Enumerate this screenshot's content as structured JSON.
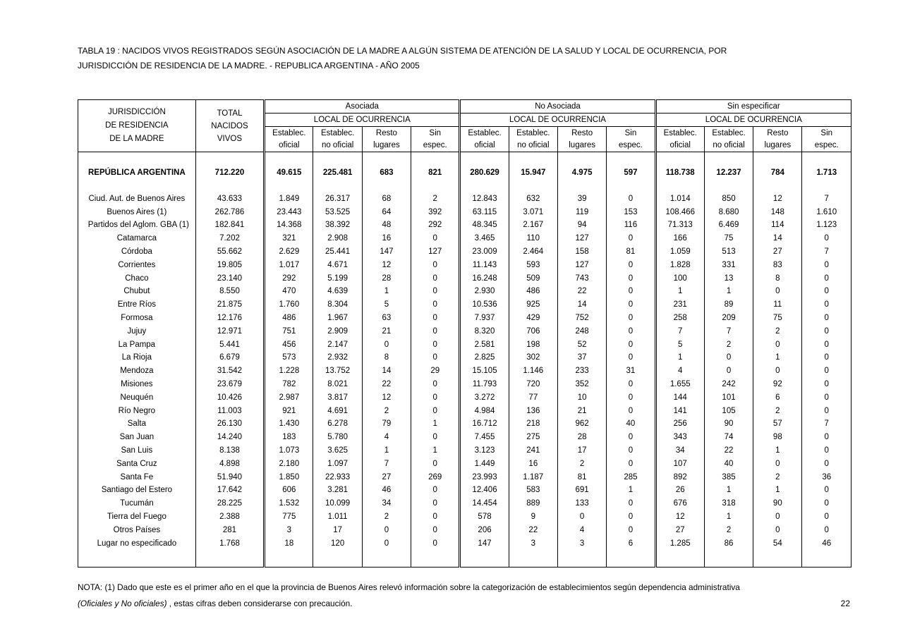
{
  "page": {
    "title_line1": "TABLA 19  : NACIDOS VIVOS REGISTRADOS SEGÚN ASOCIACIÓN DE LA MADRE A ALGÚN SISTEMA DE ATENCIÓN DE LA SALUD Y LOCAL DE OCURRENCIA, POR",
    "title_line2": "JURISDICCIÓN DE RESIDENCIA  DE LA MADRE.  - REPUBLICA ARGENTINA -  AÑO 2005",
    "note_line1": "NOTA: (1) Dado que este es el primer año en el que la provincia de Buenos Aires relevó información sobre la categorización de establecimientos según dependencia administrativa",
    "note_italic": "(Oficiales y No oficiales)",
    "note_line2_rest": " , estas cifras deben considerarse con precaución.",
    "page_number": "22"
  },
  "table": {
    "header": {
      "jurisdiction_lines": [
        "JURISDICCIÓN",
        "DE RESIDENCIA",
        "DE LA MADRE"
      ],
      "total_lines": [
        "TOTAL",
        "NACIDOS",
        "VIVOS"
      ],
      "groups": [
        {
          "label": "Asociada",
          "sublabel": "LOCAL DE OCURRENCIA"
        },
        {
          "label": "No Asociada",
          "sublabel": "LOCAL DE OCURRENCIA"
        },
        {
          "label": "Sin especificar",
          "sublabel": "LOCAL DE OCURRENCIA"
        }
      ],
      "subcolumns": [
        [
          "Establec.",
          "oficial"
        ],
        [
          "Establec.",
          "no oficial"
        ],
        [
          "Resto",
          "lugares"
        ],
        [
          "Sin",
          "espec."
        ]
      ]
    },
    "total_row": {
      "name": "REPÚBLICA ARGENTINA",
      "values": [
        "712.220",
        "49.615",
        "225.481",
        "683",
        "821",
        "280.629",
        "15.947",
        "4.975",
        "597",
        "118.738",
        "12.237",
        "784",
        "1.713"
      ]
    },
    "rows": [
      {
        "name": "Ciud. Aut. de  Buenos Aires",
        "indent": false,
        "values": [
          "43.633",
          "1.849",
          "26.317",
          "68",
          "2",
          "12.843",
          "632",
          "39",
          "0",
          "1.014",
          "850",
          "12",
          "7"
        ]
      },
      {
        "name": "Buenos Aires (1)",
        "indent": false,
        "values": [
          "262.786",
          "23.443",
          "53.525",
          "64",
          "392",
          "63.115",
          "3.071",
          "119",
          "153",
          "108.466",
          "8.680",
          "148",
          "1.610"
        ]
      },
      {
        "name": "Partidos del Aglom. GBA (1)",
        "indent": true,
        "values": [
          "182.841",
          "14.368",
          "38.392",
          "48",
          "292",
          "48.345",
          "2.167",
          "94",
          "116",
          "71.313",
          "6.469",
          "114",
          "1.123"
        ]
      },
      {
        "name": "Catamarca",
        "indent": false,
        "values": [
          "7.202",
          "321",
          "2.908",
          "16",
          "0",
          "3.465",
          "110",
          "127",
          "0",
          "166",
          "75",
          "14",
          "0"
        ]
      },
      {
        "name": "Córdoba",
        "indent": false,
        "values": [
          "55.662",
          "2.629",
          "25.441",
          "147",
          "127",
          "23.009",
          "2.464",
          "158",
          "81",
          "1.059",
          "513",
          "27",
          "7"
        ]
      },
      {
        "name": "Corrientes",
        "indent": false,
        "values": [
          "19.805",
          "1.017",
          "4.671",
          "12",
          "0",
          "11.143",
          "593",
          "127",
          "0",
          "1.828",
          "331",
          "83",
          "0"
        ]
      },
      {
        "name": "Chaco",
        "indent": false,
        "values": [
          "23.140",
          "292",
          "5.199",
          "28",
          "0",
          "16.248",
          "509",
          "743",
          "0",
          "100",
          "13",
          "8",
          "0"
        ]
      },
      {
        "name": "Chubut",
        "indent": false,
        "values": [
          "8.550",
          "470",
          "4.639",
          "1",
          "0",
          "2.930",
          "486",
          "22",
          "0",
          "1",
          "1",
          "0",
          "0"
        ]
      },
      {
        "name": "Entre Ríos",
        "indent": false,
        "values": [
          "21.875",
          "1.760",
          "8.304",
          "5",
          "0",
          "10.536",
          "925",
          "14",
          "0",
          "231",
          "89",
          "11",
          "0"
        ]
      },
      {
        "name": "Formosa",
        "indent": false,
        "values": [
          "12.176",
          "486",
          "1.967",
          "63",
          "0",
          "7.937",
          "429",
          "752",
          "0",
          "258",
          "209",
          "75",
          "0"
        ]
      },
      {
        "name": "Jujuy",
        "indent": false,
        "values": [
          "12.971",
          "751",
          "2.909",
          "21",
          "0",
          "8.320",
          "706",
          "248",
          "0",
          "7",
          "7",
          "2",
          "0"
        ]
      },
      {
        "name": "La Pampa",
        "indent": false,
        "values": [
          "5.441",
          "456",
          "2.147",
          "0",
          "0",
          "2.581",
          "198",
          "52",
          "0",
          "5",
          "2",
          "0",
          "0"
        ]
      },
      {
        "name": "La Rioja",
        "indent": false,
        "values": [
          "6.679",
          "573",
          "2.932",
          "8",
          "0",
          "2.825",
          "302",
          "37",
          "0",
          "1",
          "0",
          "1",
          "0"
        ]
      },
      {
        "name": "Mendoza",
        "indent": false,
        "values": [
          "31.542",
          "1.228",
          "13.752",
          "14",
          "29",
          "15.105",
          "1.146",
          "233",
          "31",
          "4",
          "0",
          "0",
          "0"
        ]
      },
      {
        "name": "Misiones",
        "indent": false,
        "values": [
          "23.679",
          "782",
          "8.021",
          "22",
          "0",
          "11.793",
          "720",
          "352",
          "0",
          "1.655",
          "242",
          "92",
          "0"
        ]
      },
      {
        "name": "Neuquén",
        "indent": false,
        "values": [
          "10.426",
          "2.987",
          "3.817",
          "12",
          "0",
          "3.272",
          "77",
          "10",
          "0",
          "144",
          "101",
          "6",
          "0"
        ]
      },
      {
        "name": "Río Negro",
        "indent": false,
        "values": [
          "11.003",
          "921",
          "4.691",
          "2",
          "0",
          "4.984",
          "136",
          "21",
          "0",
          "141",
          "105",
          "2",
          "0"
        ]
      },
      {
        "name": "Salta",
        "indent": false,
        "values": [
          "26.130",
          "1.430",
          "6.278",
          "79",
          "1",
          "16.712",
          "218",
          "962",
          "40",
          "256",
          "90",
          "57",
          "7"
        ]
      },
      {
        "name": "San Juan",
        "indent": false,
        "values": [
          "14.240",
          "183",
          "5.780",
          "4",
          "0",
          "7.455",
          "275",
          "28",
          "0",
          "343",
          "74",
          "98",
          "0"
        ]
      },
      {
        "name": "San Luis",
        "indent": false,
        "values": [
          "8.138",
          "1.073",
          "3.625",
          "1",
          "1",
          "3.123",
          "241",
          "17",
          "0",
          "34",
          "22",
          "1",
          "0"
        ]
      },
      {
        "name": "Santa Cruz",
        "indent": false,
        "values": [
          "4.898",
          "2.180",
          "1.097",
          "7",
          "0",
          "1.449",
          "16",
          "2",
          "0",
          "107",
          "40",
          "0",
          "0"
        ]
      },
      {
        "name": "Santa Fe",
        "indent": false,
        "values": [
          "51.940",
          "1.850",
          "22.933",
          "27",
          "269",
          "23.993",
          "1.187",
          "81",
          "285",
          "892",
          "385",
          "2",
          "36"
        ]
      },
      {
        "name": "Santiago del Estero",
        "indent": false,
        "values": [
          "17.642",
          "606",
          "3.281",
          "46",
          "0",
          "12.406",
          "583",
          "691",
          "1",
          "26",
          "1",
          "1",
          "0"
        ]
      },
      {
        "name": "Tucumán",
        "indent": false,
        "values": [
          "28.225",
          "1.532",
          "10.099",
          "34",
          "0",
          "14.454",
          "889",
          "133",
          "0",
          "676",
          "318",
          "90",
          "0"
        ]
      },
      {
        "name": "Tierra del Fuego",
        "indent": false,
        "values": [
          "2.388",
          "775",
          "1.011",
          "2",
          "0",
          "578",
          "9",
          "0",
          "0",
          "12",
          "1",
          "0",
          "0"
        ]
      },
      {
        "name": "Otros Países",
        "indent": false,
        "values": [
          "281",
          "3",
          "17",
          "0",
          "0",
          "206",
          "22",
          "4",
          "0",
          "27",
          "2",
          "0",
          "0"
        ]
      },
      {
        "name": "Lugar no especificado",
        "indent": false,
        "values": [
          "1.768",
          "18",
          "120",
          "0",
          "0",
          "147",
          "3",
          "3",
          "6",
          "1.285",
          "86",
          "54",
          "46"
        ]
      }
    ]
  }
}
